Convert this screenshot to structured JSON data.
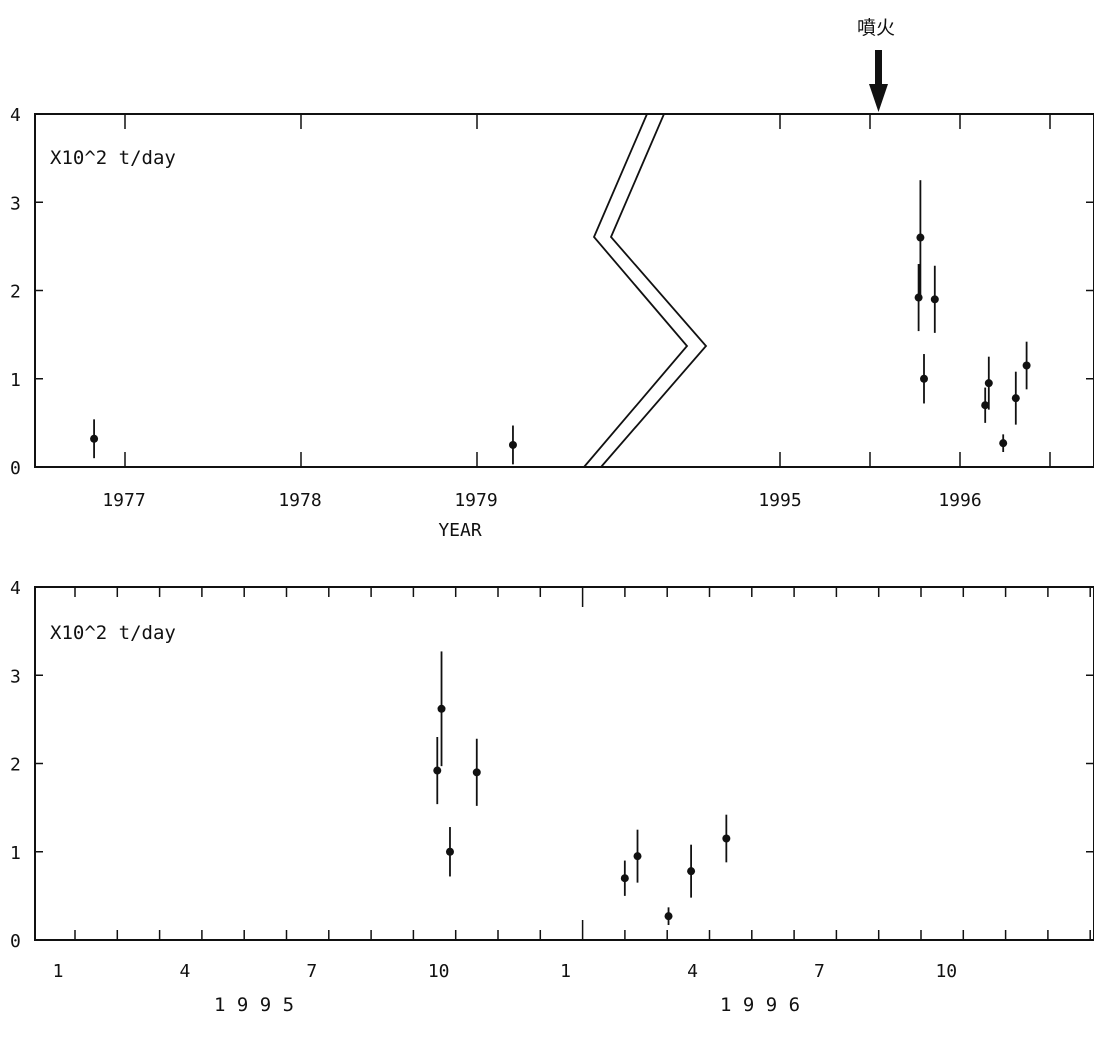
{
  "eruption_annotation": {
    "label": "噴火"
  },
  "chart_data": [
    {
      "type": "scatter",
      "unit_label": "X10^2 t/day",
      "xlabel": "YEAR",
      "y_ticks": [
        "0",
        "1",
        "2",
        "3",
        "4"
      ],
      "ylim": [
        0,
        4
      ],
      "x_tick_labels": [
        "1977",
        "1978",
        "1979",
        "1995",
        "1996"
      ],
      "axis_break": "between 1979 and 1995",
      "eruption_marker_year": 1995.78,
      "series": [
        {
          "points": [
            {
              "x": 1976.83,
              "y": 0.32,
              "err": 0.22
            },
            {
              "x": 1979.21,
              "y": 0.25,
              "err": 0.22
            },
            {
              "x": 1995.77,
              "y": 1.92,
              "err": 0.38
            },
            {
              "x": 1995.78,
              "y": 2.6,
              "err": 0.65
            },
            {
              "x": 1995.8,
              "y": 1.0,
              "err": 0.28
            },
            {
              "x": 1995.86,
              "y": 1.9,
              "err": 0.38
            },
            {
              "x": 1996.14,
              "y": 0.7,
              "err": 0.2
            },
            {
              "x": 1996.16,
              "y": 0.95,
              "err": 0.3
            },
            {
              "x": 1996.24,
              "y": 0.27,
              "err": 0.1
            },
            {
              "x": 1996.31,
              "y": 0.78,
              "err": 0.3
            },
            {
              "x": 1996.37,
              "y": 1.15,
              "err": 0.27
            }
          ]
        }
      ],
      "grid": false
    },
    {
      "type": "scatter",
      "unit_label": "X10^2 t/day",
      "y_ticks": [
        "0",
        "1",
        "2",
        "3",
        "4"
      ],
      "ylim": [
        0,
        4
      ],
      "x_tick_labels": [
        "1",
        "4",
        "7",
        "10",
        "1",
        "4",
        "7",
        "10"
      ],
      "year_labels": [
        "1 9 9 5",
        "1 9 9 6"
      ],
      "series": [
        {
          "points": [
            {
              "x": "1995-09-30",
              "y": 1.92,
              "err": 0.38
            },
            {
              "x": "1995-10-03",
              "y": 2.62,
              "err": 0.65
            },
            {
              "x": "1995-10-09",
              "y": 1.0,
              "err": 0.28
            },
            {
              "x": "1995-10-28",
              "y": 1.9,
              "err": 0.38
            },
            {
              "x": "1996-02-13",
              "y": 0.7,
              "err": 0.2
            },
            {
              "x": "1996-02-22",
              "y": 0.95,
              "err": 0.3
            },
            {
              "x": "1996-03-14",
              "y": 0.27,
              "err": 0.1
            },
            {
              "x": "1996-03-30",
              "y": 0.78,
              "err": 0.3
            },
            {
              "x": "1996-04-25",
              "y": 1.15,
              "err": 0.27
            }
          ]
        }
      ],
      "grid": false
    }
  ]
}
